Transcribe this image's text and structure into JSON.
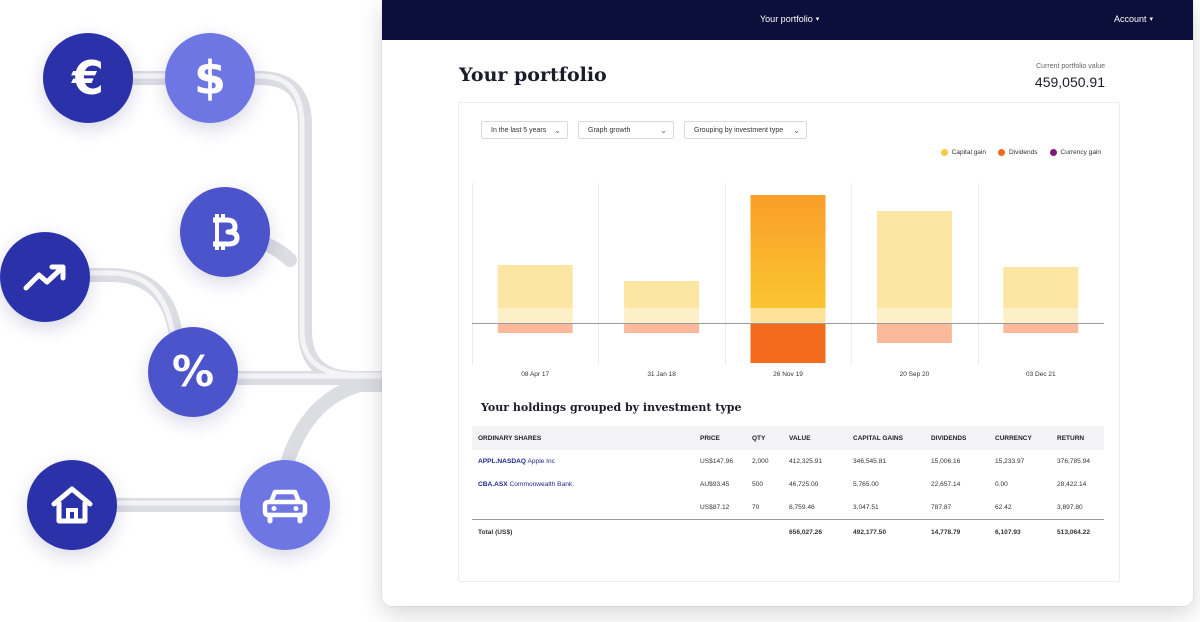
{
  "icons": {
    "euro": "€",
    "dollar": "$",
    "bitcoin": "B",
    "percent": "%",
    "trend": "trending-up-icon",
    "home": "home-icon",
    "car": "car-icon"
  },
  "colors": {
    "nav_bg": "#0c0f3a",
    "capital_gain": "#f7c945",
    "dividends": "#f26a1b",
    "currency_gain": "#7a1a7a",
    "link": "#1d2a8f"
  },
  "nav": {
    "portfolio": "Your portfolio",
    "account": "Account"
  },
  "header": {
    "title": "Your portfolio",
    "value_label": "Current portfolio value",
    "value": "459,050.91"
  },
  "filters": {
    "period": "In the last 5 years",
    "graph": "Graph growth",
    "grouping": "Grouping by investment type"
  },
  "legend": [
    "Capital gain",
    "Dividends",
    "Currency gain"
  ],
  "chart_data": {
    "type": "bar",
    "categories": [
      "08 Apr 17",
      "31 Jan 18",
      "26 Nov 19",
      "20 Sep 20",
      "03 Dec 21"
    ],
    "series": [
      {
        "name": "Capital gain",
        "values": [
          58,
          42,
          128,
          112,
          56
        ]
      },
      {
        "name": "Dividends",
        "values": [
          -10,
          -10,
          -40,
          -20,
          -10
        ]
      }
    ],
    "highlight_index": 2
  },
  "holdings": {
    "title": "Your holdings grouped by investment type",
    "columns": [
      "ORDINARY SHARES",
      "PRICE",
      "QTY",
      "VALUE",
      "CAPITAL GAINS",
      "DIVIDENDS",
      "CURRENCY",
      "RETURN"
    ],
    "rows": [
      {
        "ticker": "APPL.NASDAQ",
        "company": "Apple Inc",
        "price": "US$147.96",
        "qty": "2,000",
        "value": "412,325.91",
        "capital_gains": "346,545.81",
        "dividends": "15,006.16",
        "currency": "15,233.97",
        "return": "376,785.94"
      },
      {
        "ticker": "CBA.ASX",
        "company": "Commonwealth Bank.",
        "price": "AU$93.45",
        "qty": "500",
        "value": "46,725.00",
        "capital_gains": "5,765.00",
        "dividends": "22,657.14",
        "currency": "0.00",
        "return": "28,422.14"
      },
      {
        "ticker": "",
        "company": "",
        "price": "US$87.12",
        "qty": "70",
        "value": "8,759.46",
        "capital_gains": "3,047.51",
        "dividends": "787.87",
        "currency": "62.42",
        "return": "3,897.80"
      }
    ],
    "total": {
      "label": "Total (US$)",
      "value": "656,027.26",
      "capital_gains": "492,177.50",
      "dividends": "14,778.79",
      "currency": "6,107.93",
      "return": "513,064.22"
    }
  }
}
